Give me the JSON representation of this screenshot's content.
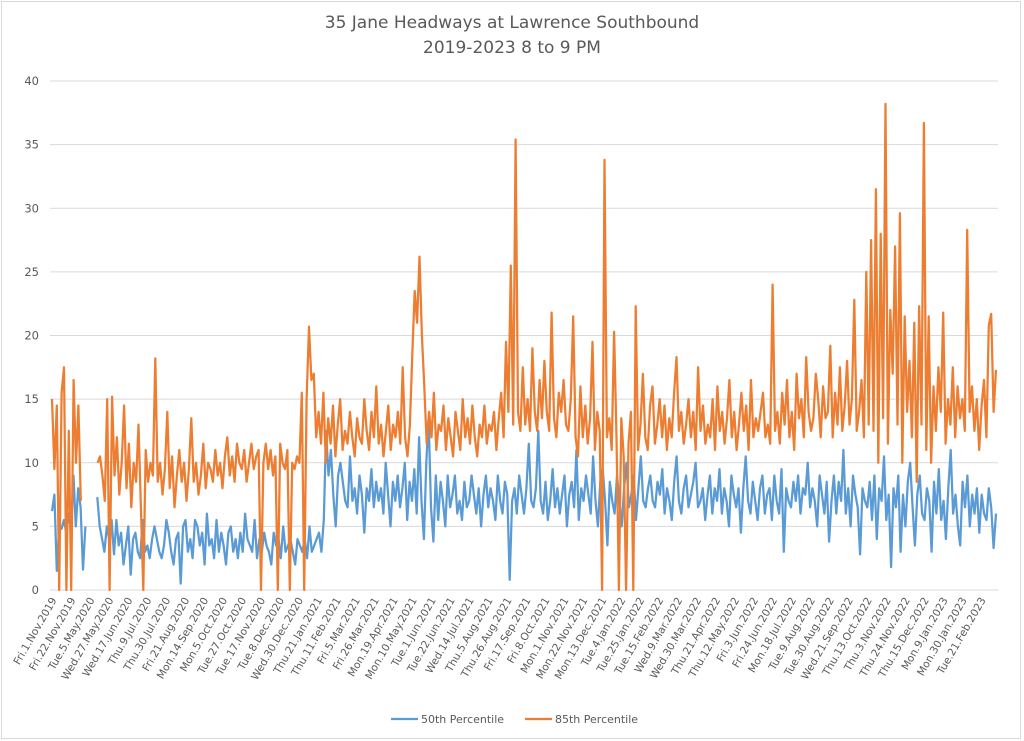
{
  "chart_data": {
    "type": "line",
    "title": "35 Jane Headways at Lawrence Southbound",
    "subtitle": "2019-2023 8 to 9 PM",
    "xlabel": "",
    "ylabel": "",
    "ylim": [
      0,
      40
    ],
    "yticks": [
      0,
      5,
      10,
      15,
      20,
      25,
      30,
      35,
      40
    ],
    "grid": true,
    "legend_position": "bottom",
    "x_tick_labels": [
      "Fri.1.Nov.2019",
      "Fri.22.Nov.2019",
      "Tue.5.May.2020",
      "Wed.27.May.2020",
      "Wed.17.Jun.2020",
      "Thu.9.Jul.2020",
      "Thu.30.Jul.2020",
      "Fri.21.Aug.2020",
      "Mon.14.Sep.2020",
      "Mon.5.Oct.2020",
      "Tue.27.Oct.2020",
      "Tue.17.Nov.2020",
      "Tue.8.Dec.2020",
      "Wed.30.Dec.2020",
      "Thu.21.Jan.2021",
      "Thu.11.Feb.2021",
      "Fri.5.Mar.2021",
      "Fri.26.Mar.2021",
      "Mon.19.Apr.2021",
      "Mon.10.May.2021",
      "Tue.1.Jun.2021",
      "Tue.22.Jun.2021",
      "Wed.14.Jul.2021",
      "Thu.5.Aug.2021",
      "Thu.26.Aug.2021",
      "Fri.17.Sep.2021",
      "Fri.8.Oct.2021",
      "Mon.1.Nov.2021",
      "Mon.22.Nov.2021",
      "Mon.13.Dec.2021",
      "Tue.4.Jan.2022",
      "Tue.25.Jan.2022",
      "Tue.15.Feb.2022",
      "Wed.9.Mar.2022",
      "Wed.30.Mar.2022",
      "Thu.21.Apr.2022",
      "Thu.12.May.2022",
      "Fri.3.Jun.2022",
      "Fri.24.Jun.2022",
      "Mon.18.Jul.2022",
      "Tue.9.Aug.2022",
      "Tue.30.Aug.2022",
      "Wed.21.Sep.2022",
      "Thu.13.Oct.2022",
      "Thu.3.Nov.2022",
      "Thu.24.Nov.2022",
      "Thu.15.Dec.2022",
      "Mon.9.Jan.2023",
      "Mon.30.Jan.2023",
      "Tue.21.Feb.2023"
    ],
    "series": [
      {
        "name": "50th Percentile",
        "color": "#5B9BD5",
        "values": [
          6.2,
          7.5,
          1.5,
          5.0,
          4.8,
          5.5,
          4.5,
          6.0,
          4.5,
          9.0,
          5.0,
          8.0,
          6.5,
          1.6,
          5.0,
          null,
          null,
          null,
          null,
          7.3,
          5.0,
          4.0,
          3.0,
          5.0,
          4.0,
          5.5,
          2.8,
          5.5,
          3.5,
          4.5,
          2.0,
          3.5,
          5.0,
          1.2,
          4.0,
          4.5,
          3.0,
          2.5,
          5.5,
          3.0,
          3.5,
          2.5,
          4.0,
          5.0,
          4.0,
          3.0,
          2.5,
          3.5,
          5.5,
          4.5,
          3.0,
          2.0,
          4.0,
          4.5,
          0.5,
          5.0,
          5.5,
          3.0,
          4.0,
          2.5,
          5.5,
          5.0,
          3.5,
          4.5,
          2.0,
          6.0,
          3.5,
          4.0,
          2.5,
          5.5,
          3.0,
          4.5,
          3.5,
          2.0,
          4.5,
          5.0,
          3.0,
          4.0,
          2.5,
          4.5,
          3.0,
          6.0,
          4.0,
          3.5,
          3.0,
          5.5,
          2.5,
          4.0,
          3.0,
          4.5,
          3.5,
          3.0,
          2.0,
          4.5,
          3.5,
          4.0,
          2.5,
          5.0,
          3.0,
          3.5,
          4.0,
          3.0,
          2.0,
          4.0,
          3.5,
          3.0,
          4.0,
          2.5,
          5.0,
          3.0,
          3.5,
          4.0,
          4.5,
          3.0,
          5.5,
          12.5,
          9.0,
          11.0,
          7.5,
          5.0,
          9.0,
          10.0,
          8.5,
          7.0,
          6.5,
          10.5,
          7.0,
          8.0,
          6.0,
          9.0,
          7.5,
          4.5,
          8.0,
          7.0,
          9.5,
          6.5,
          8.5,
          7.0,
          8.0,
          6.0,
          10.0,
          7.5,
          5.0,
          8.5,
          7.0,
          9.0,
          6.5,
          8.0,
          10.0,
          5.5,
          8.5,
          7.0,
          9.5,
          6.0,
          12.0,
          7.0,
          4.0,
          10.0,
          13.5,
          6.5,
          3.8,
          9.0,
          5.5,
          8.5,
          7.0,
          5.0,
          9.0,
          6.5,
          7.5,
          9.0,
          6.0,
          7.0,
          5.5,
          8.5,
          6.5,
          7.0,
          9.0,
          7.5,
          6.0,
          8.0,
          5.0,
          7.5,
          9.0,
          6.5,
          8.0,
          7.0,
          5.5,
          9.0,
          7.0,
          6.0,
          8.5,
          7.5,
          0.8,
          7.0,
          8.0,
          6.0,
          9.0,
          7.5,
          6.0,
          8.0,
          11.5,
          7.0,
          6.5,
          8.0,
          12.5,
          7.0,
          6.0,
          8.5,
          5.5,
          7.0,
          9.5,
          6.5,
          8.0,
          6.0,
          7.5,
          9.0,
          5.0,
          7.5,
          8.5,
          6.5,
          11.0,
          5.5,
          8.0,
          7.0,
          9.0,
          7.5,
          6.0,
          10.5,
          7.0,
          5.0,
          8.5,
          9.5,
          7.0,
          3.5,
          8.5,
          7.0,
          6.0,
          9.0,
          7.0,
          5.0,
          8.0,
          10.0,
          6.5,
          7.5,
          9.0,
          5.5,
          8.0,
          10.5,
          7.0,
          6.5,
          8.0,
          9.0,
          7.0,
          6.5,
          8.5,
          7.5,
          9.5,
          6.0,
          8.0,
          7.0,
          5.5,
          8.5,
          10.5,
          7.0,
          6.0,
          8.0,
          9.0,
          6.5,
          7.5,
          8.5,
          10.0,
          6.5,
          7.0,
          8.0,
          5.5,
          7.5,
          9.0,
          6.0,
          8.0,
          7.0,
          9.5,
          6.0,
          8.0,
          7.0,
          5.0,
          9.0,
          7.5,
          6.5,
          8.0,
          4.5,
          8.0,
          10.5,
          7.0,
          6.0,
          8.5,
          7.0,
          5.5,
          8.0,
          9.0,
          6.0,
          7.5,
          8.0,
          5.5,
          9.0,
          7.0,
          6.0,
          9.5,
          3.0,
          8.0,
          7.0,
          6.5,
          8.5,
          7.0,
          9.0,
          6.0,
          8.0,
          7.5,
          10.0,
          6.5,
          8.0,
          7.0,
          5.0,
          9.0,
          7.5,
          6.0,
          8.5,
          3.8,
          7.0,
          9.0,
          6.0,
          8.5,
          7.0,
          11.0,
          6.0,
          8.0,
          5.0,
          9.0,
          7.5,
          6.5,
          2.8,
          8.0,
          7.0,
          6.5,
          8.5,
          5.5,
          9.0,
          4.0,
          8.0,
          7.0,
          10.5,
          5.5,
          7.5,
          1.8,
          8.0,
          6.5,
          9.0,
          3.0,
          7.5,
          5.0,
          8.5,
          10.0,
          6.5,
          3.5,
          7.5,
          9.0,
          6.0,
          5.5,
          8.0,
          7.0,
          3.0,
          8.5,
          6.0,
          9.5,
          5.5,
          7.0,
          4.0,
          8.0,
          11.0,
          6.0,
          7.5,
          5.0,
          3.5,
          8.5,
          6.5,
          9.0,
          5.0,
          7.5,
          6.0,
          8.0,
          4.5,
          7.5,
          6.0,
          5.5,
          8.0,
          6.5,
          3.3,
          6.0
        ]
      },
      {
        "name": "85th Percentile",
        "color": "#ED7D31",
        "values": [
          15.0,
          9.5,
          14.5,
          0.0,
          15.5,
          17.5,
          0.0,
          12.5,
          0.0,
          16.5,
          10.0,
          14.5,
          7.0,
          null,
          null,
          null,
          null,
          null,
          null,
          10.0,
          10.5,
          9.0,
          7.0,
          15.0,
          0.0,
          15.2,
          9.0,
          12.0,
          7.5,
          10.0,
          14.5,
          8.0,
          11.5,
          6.5,
          10.0,
          8.5,
          13.0,
          6.5,
          0.0,
          11.0,
          8.5,
          10.0,
          9.0,
          18.2,
          8.5,
          10.0,
          7.5,
          9.5,
          14.0,
          8.0,
          10.5,
          6.5,
          9.0,
          11.0,
          8.5,
          10.0,
          7.0,
          9.5,
          13.5,
          8.5,
          10.0,
          7.5,
          9.0,
          11.5,
          8.0,
          10.0,
          9.5,
          8.5,
          11.0,
          9.0,
          10.0,
          8.0,
          10.5,
          12.0,
          9.0,
          10.5,
          8.5,
          11.5,
          10.0,
          9.5,
          11.0,
          8.5,
          10.0,
          11.5,
          9.5,
          10.5,
          11.0,
          0.0,
          10.0,
          11.5,
          9.5,
          11.0,
          9.0,
          10.5,
          0.0,
          11.5,
          10.0,
          9.5,
          11.0,
          0.0,
          10.0,
          9.5,
          10.5,
          10.0,
          15.5,
          0.0,
          15.0,
          20.7,
          16.5,
          17.0,
          12.0,
          14.0,
          11.5,
          15.5,
          10.0,
          13.5,
          11.5,
          14.5,
          10.5,
          13.0,
          15.0,
          11.0,
          12.5,
          11.5,
          14.0,
          12.0,
          10.5,
          13.5,
          12.0,
          11.5,
          15.0,
          12.5,
          11.0,
          14.0,
          12.0,
          16.0,
          11.5,
          13.0,
          10.5,
          12.5,
          14.5,
          11.0,
          13.0,
          12.0,
          14.0,
          11.5,
          17.5,
          12.0,
          10.5,
          13.0,
          18.5,
          23.5,
          21.0,
          26.2,
          20.0,
          16.0,
          11.5,
          14.0,
          12.0,
          15.5,
          11.0,
          13.0,
          12.5,
          14.5,
          11.0,
          13.5,
          12.0,
          10.5,
          14.0,
          12.5,
          11.0,
          15.0,
          12.0,
          13.5,
          11.5,
          14.5,
          12.0,
          10.5,
          13.0,
          12.0,
          14.5,
          11.5,
          13.0,
          12.5,
          14.0,
          11.0,
          13.5,
          15.5,
          12.0,
          19.5,
          14.0,
          25.5,
          13.0,
          35.4,
          14.0,
          12.5,
          17.5,
          13.0,
          15.0,
          12.5,
          19.0,
          14.0,
          12.5,
          16.5,
          13.5,
          18.0,
          14.0,
          12.5,
          21.8,
          13.5,
          12.0,
          15.5,
          14.0,
          16.5,
          13.0,
          12.5,
          15.0,
          21.5,
          12.0,
          10.5,
          16.0,
          12.0,
          14.5,
          11.5,
          13.5,
          19.5,
          11.0,
          14.0,
          12.5,
          0.0,
          33.8,
          12.0,
          13.5,
          11.0,
          20.3,
          12.0,
          0.0,
          13.5,
          10.5,
          0.0,
          11.5,
          14.0,
          0.0,
          22.3,
          11.0,
          13.0,
          17.0,
          12.0,
          11.0,
          14.5,
          16.0,
          11.5,
          13.0,
          15.0,
          12.0,
          14.5,
          11.0,
          13.5,
          12.0,
          15.5,
          18.3,
          12.5,
          14.0,
          11.5,
          13.0,
          15.0,
          12.0,
          14.0,
          11.0,
          17.5,
          12.5,
          14.5,
          11.5,
          13.0,
          12.0,
          15.0,
          11.0,
          16.0,
          12.5,
          14.0,
          11.5,
          13.5,
          16.5,
          12.0,
          14.0,
          11.0,
          13.0,
          15.5,
          12.5,
          14.5,
          11.0,
          16.5,
          12.0,
          13.5,
          12.5,
          14.0,
          15.5,
          12.0,
          13.0,
          11.5,
          24.0,
          12.5,
          14.0,
          11.5,
          15.5,
          13.0,
          16.5,
          12.0,
          14.0,
          11.0,
          17.0,
          13.5,
          15.0,
          12.0,
          18.3,
          14.0,
          12.5,
          13.5,
          17.0,
          15.0,
          12.0,
          16.0,
          13.5,
          14.0,
          19.2,
          12.0,
          15.5,
          13.0,
          17.5,
          12.5,
          14.5,
          18.0,
          13.0,
          15.0,
          22.8,
          12.5,
          14.0,
          16.5,
          12.0,
          25.0,
          13.0,
          27.5,
          12.5,
          31.5,
          10.0,
          28.0,
          13.5,
          38.2,
          11.5,
          22.0,
          17.0,
          27.0,
          13.0,
          29.6,
          10.0,
          21.5,
          14.0,
          18.0,
          12.0,
          21.0,
          8.5,
          22.3,
          13.0,
          36.7,
          11.0,
          21.5,
          10.0,
          16.0,
          12.5,
          17.5,
          14.0,
          21.8,
          11.5,
          15.0,
          13.0,
          17.5,
          12.0,
          16.0,
          13.5,
          15.0,
          12.5,
          28.3,
          14.0,
          16.0,
          12.5,
          15.0,
          11.0,
          14.5,
          16.5,
          12.0,
          20.8,
          21.7,
          14.0,
          17.3
        ]
      }
    ]
  }
}
